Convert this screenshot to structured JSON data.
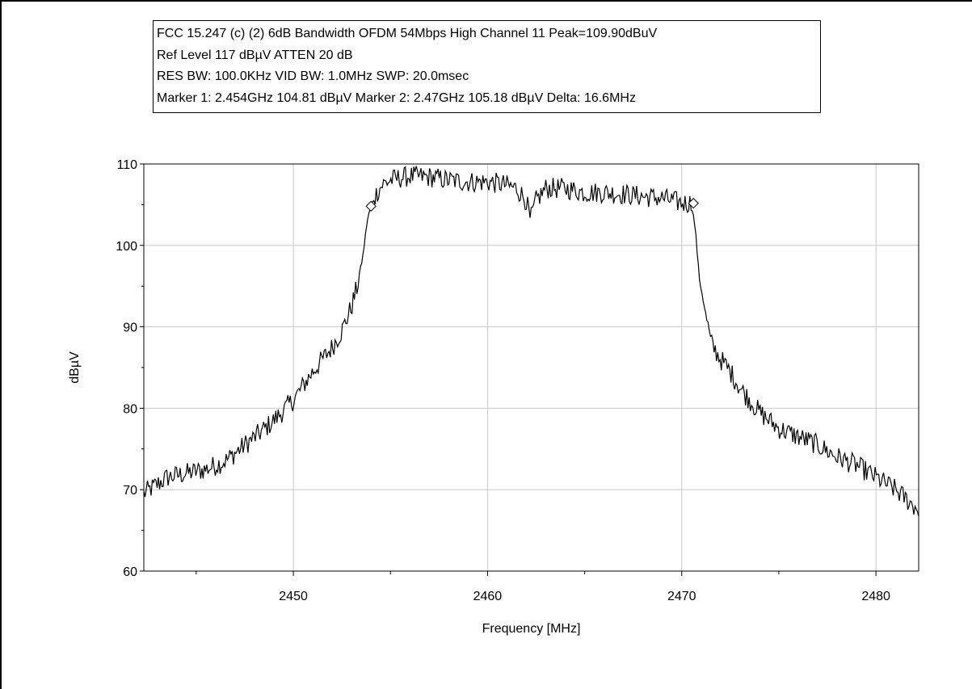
{
  "info": {
    "line1": "FCC 15.247 (c) (2) 6dB Bandwidth OFDM 54Mbps High Channel 11 Peak=109.90dBuV",
    "line2": "Ref Level 117 dBµV    ATTEN 20 dB",
    "line3": "RES BW: 100.0KHz  VID BW: 1.0MHz  SWP: 20.0msec",
    "line4": "Marker 1: 2.454GHz  104.81 dBµV    Marker 2: 2.47GHz  105.18 dBµV Delta: 16.6MHz"
  },
  "chart_data": {
    "type": "line",
    "xlabel": "Frequency [MHz]",
    "ylabel": "dBµV",
    "xlim": [
      2442.3,
      2482.2
    ],
    "ylim": [
      60,
      110
    ],
    "xticks": [
      2450,
      2460,
      2470,
      2480
    ],
    "yticks": [
      60,
      70,
      80,
      90,
      100,
      110
    ],
    "grid": true,
    "trace_color": "#000000",
    "grid_color": "#c8c8c8",
    "series": [
      {
        "x": [
          2442.3,
          2443.5,
          2444.5,
          2445.5,
          2446.5,
          2447.5,
          2448.3,
          2449.0,
          2450.0,
          2451.0,
          2451.5,
          2452.0,
          2452.5,
          2453.0,
          2453.3,
          2453.6,
          2453.8,
          2454.0,
          2454.3,
          2454.6,
          2455.0,
          2455.5,
          2456.0,
          2457.0,
          2458.0,
          2459.0,
          2460.0,
          2460.8,
          2461.5,
          2462.0,
          2462.2,
          2462.5,
          2463.0,
          2464.0,
          2465.0,
          2466.0,
          2467.0,
          2468.0,
          2469.0,
          2470.0,
          2470.5,
          2470.7,
          2470.9,
          2471.2,
          2471.5,
          2472.0,
          2472.5,
          2473.0,
          2474.0,
          2475.0,
          2476.0,
          2477.0,
          2478.0,
          2479.0,
          2480.0,
          2481.0,
          2482.2
        ],
        "y": [
          69.5,
          71.5,
          72.0,
          72.5,
          73.5,
          75.5,
          77.0,
          78.5,
          81.0,
          84.5,
          86.0,
          87.5,
          89.5,
          92.5,
          95.0,
          99.0,
          103.0,
          104.81,
          106.5,
          107.5,
          108.0,
          108.3,
          108.5,
          108.4,
          108.0,
          107.8,
          107.8,
          107.5,
          107.0,
          105.5,
          103.0,
          105.5,
          107.0,
          107.0,
          106.5,
          106.5,
          106.3,
          106.0,
          105.8,
          105.2,
          105.18,
          102.0,
          96.0,
          92.0,
          88.0,
          86.0,
          84.5,
          82.5,
          79.5,
          77.5,
          76.5,
          75.5,
          74.0,
          73.0,
          71.5,
          70.0,
          67.5
        ]
      }
    ],
    "markers": [
      {
        "x": 2454.0,
        "y": 104.81
      },
      {
        "x": 2470.6,
        "y": 105.18
      }
    ]
  }
}
